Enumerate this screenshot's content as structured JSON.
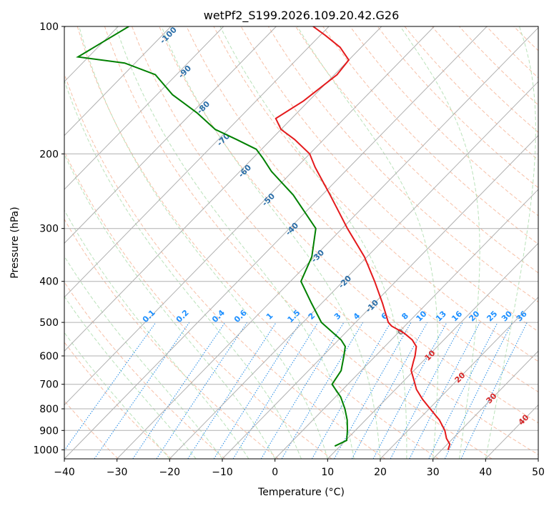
{
  "chart_data": {
    "type": "skew-t",
    "title": "wetPf2_S199.2026.109.20.42.G26",
    "xlabel": "Temperature (°C)",
    "ylabel": "Pressure (hPa)",
    "xlim": [
      -40,
      50
    ],
    "ylim_hpa": [
      1050,
      100
    ],
    "x_ticks": [
      -40,
      -30,
      -20,
      -10,
      0,
      10,
      20,
      30,
      40,
      50
    ],
    "x_tick_labels": [
      "−40",
      "−30",
      "−20",
      "−10",
      "0",
      "10",
      "20",
      "30",
      "40",
      "50"
    ],
    "y_ticks": [
      100,
      200,
      300,
      400,
      500,
      600,
      700,
      800,
      900,
      1000
    ],
    "y_tick_labels": [
      "100",
      "200",
      "300",
      "400",
      "500",
      "600",
      "700",
      "800",
      "900",
      "1000"
    ],
    "colors": {
      "temperature": "#e41a1c",
      "dewpoint": "#008000",
      "isotherm": "#b0b0b0",
      "dry_adiabat": "#f4a582",
      "moist_adiabat": "#b2dfb2",
      "mixing_ratio": "#1e88e5"
    },
    "series": [
      {
        "name": "temperature",
        "points": [
          {
            "p": 1000,
            "t": 31.2
          },
          {
            "p": 970,
            "t": 30.5
          },
          {
            "p": 940,
            "t": 28.8
          },
          {
            "p": 900,
            "t": 27.0
          },
          {
            "p": 850,
            "t": 24.0
          },
          {
            "p": 800,
            "t": 20.2
          },
          {
            "p": 760,
            "t": 17.0
          },
          {
            "p": 720,
            "t": 14.0
          },
          {
            "p": 680,
            "t": 11.5
          },
          {
            "p": 650,
            "t": 9.5
          },
          {
            "p": 620,
            "t": 8.3
          },
          {
            "p": 600,
            "t": 7.5
          },
          {
            "p": 570,
            "t": 6.0
          },
          {
            "p": 550,
            "t": 4.0
          },
          {
            "p": 530,
            "t": 1.2
          },
          {
            "p": 510,
            "t": -2.5
          },
          {
            "p": 500,
            "t": -3.8
          },
          {
            "p": 450,
            "t": -8.5
          },
          {
            "p": 400,
            "t": -14.0
          },
          {
            "p": 350,
            "t": -20.5
          },
          {
            "p": 300,
            "t": -29.0
          },
          {
            "p": 250,
            "t": -38.5
          },
          {
            "p": 215,
            "t": -46.5
          },
          {
            "p": 200,
            "t": -50.0
          },
          {
            "p": 185,
            "t": -55.5
          },
          {
            "p": 175,
            "t": -60.0
          },
          {
            "p": 165,
            "t": -63.0
          },
          {
            "p": 150,
            "t": -61.0
          },
          {
            "p": 130,
            "t": -59.5
          },
          {
            "p": 120,
            "t": -60.0
          },
          {
            "p": 112,
            "t": -64.0
          },
          {
            "p": 105,
            "t": -69.0
          },
          {
            "p": 100,
            "t": -73.0
          }
        ]
      },
      {
        "name": "dewpoint",
        "points": [
          {
            "p": 980,
            "t": 9.0
          },
          {
            "p": 950,
            "t": 10.2
          },
          {
            "p": 900,
            "t": 8.5
          },
          {
            "p": 850,
            "t": 6.5
          },
          {
            "p": 800,
            "t": 4.0
          },
          {
            "p": 750,
            "t": 1.0
          },
          {
            "p": 700,
            "t": -3.0
          },
          {
            "p": 650,
            "t": -3.8
          },
          {
            "p": 600,
            "t": -6.0
          },
          {
            "p": 570,
            "t": -7.5
          },
          {
            "p": 550,
            "t": -9.5
          },
          {
            "p": 500,
            "t": -16.5
          },
          {
            "p": 450,
            "t": -22.0
          },
          {
            "p": 400,
            "t": -28.0
          },
          {
            "p": 350,
            "t": -30.5
          },
          {
            "p": 300,
            "t": -35.0
          },
          {
            "p": 250,
            "t": -45.5
          },
          {
            "p": 220,
            "t": -54.0
          },
          {
            "p": 205,
            "t": -58.0
          },
          {
            "p": 195,
            "t": -61.0
          },
          {
            "p": 185,
            "t": -66.5
          },
          {
            "p": 175,
            "t": -72.5
          },
          {
            "p": 160,
            "t": -79.0
          },
          {
            "p": 145,
            "t": -87.0
          },
          {
            "p": 130,
            "t": -94.0
          },
          {
            "p": 122,
            "t": -102.0
          },
          {
            "p": 118,
            "t": -112.0
          },
          {
            "p": 100,
            "t": -108.0
          }
        ]
      }
    ],
    "dry_adiabat_labels": [
      "-100",
      "-90",
      "-80",
      "-70",
      "-60",
      "-50",
      "-40",
      "-30",
      "-20",
      "-10"
    ],
    "moist_adiabat_labels": [
      "0",
      "10",
      "20",
      "30",
      "40"
    ],
    "mixing_ratio_labels": [
      "0.1",
      "0.2",
      "0.4",
      "0.6",
      "1",
      "1.5",
      "2",
      "3",
      "4",
      "6",
      "8",
      "10",
      "13",
      "16",
      "20",
      "25",
      "30",
      "36"
    ]
  }
}
